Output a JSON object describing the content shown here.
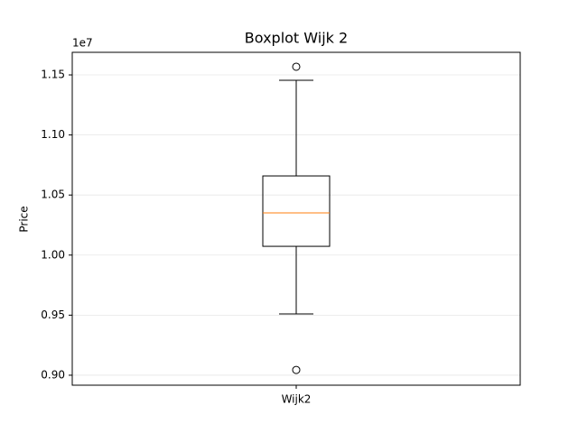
{
  "chart_data": {
    "type": "box",
    "title": "Boxplot Wijk 2",
    "ylabel": "Price",
    "offset_label": "1e7",
    "categories": [
      "Wijk2"
    ],
    "boxes": [
      {
        "whislo": 9510000,
        "q1": 10073000,
        "med": 10351000,
        "q3": 10659000,
        "whishi": 11455000,
        "fliers": [
          11568000,
          9044000
        ]
      }
    ],
    "box_color": "#000000",
    "median_color": "#ff7f0e",
    "ylim": [
      8917000,
      11688000
    ],
    "yticks": [
      {
        "value": 9000000,
        "label": "0.90"
      },
      {
        "value": 9500000,
        "label": "0.95"
      },
      {
        "value": 10000000,
        "label": "1.00"
      },
      {
        "value": 10500000,
        "label": "1.05"
      },
      {
        "value": 11000000,
        "label": "1.10"
      },
      {
        "value": 11500000,
        "label": "1.15"
      }
    ],
    "grid": true
  }
}
